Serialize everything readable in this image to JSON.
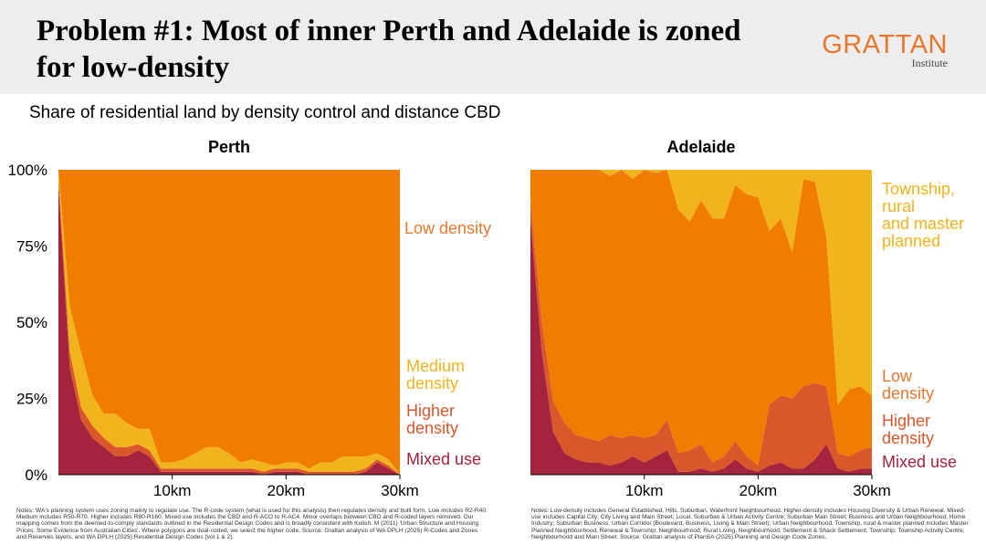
{
  "header": {
    "title": "Problem #1: Most of inner Perth and Adelaide is zoned for low-density",
    "logo_main": "GRATTAN",
    "logo_sub": "Institute"
  },
  "subtitle": "Share of residential land by density control and distance CBD",
  "colors": {
    "mixed_use": "#a3243c",
    "higher_density": "#d9572b",
    "low_density": "#f07d00",
    "medium_density": "#f2b41c",
    "township": "#f2b41c"
  },
  "notes": {
    "perth": "Notes: WA's planning system uses zoning mainly to regulate use. The R-code system (what is used for this analysis) then regulates density and built form. Low includes R2-R40. Medium includes R50-R70. Higher includes R80-R160. Mixed use includes the CBD and R-ACO to R-AC4. Minor overlaps between CBD and R-coded layers removed. Our mapping comes from the deemed-to-comply standards outlined in the Residential Design Codes and is broadly consistent with Kulish. M (2011) 'Urban Structure and Housing Prices: Some Evidence from Australian Cities'. Where polygons are dual-coded, we select the higher code. Source: Grattan analysis of WA DPLH (2025) R-Codes and Zones and Reserves layers, and WA DPLH (2025) Residential Design Codes (vol 1 & 2).",
    "adelaide": "Notes: Low-density includes General Established, Hills, Suburban, Waterfront Neighbourhood. Higher-density includes Housing Diversity & Urban Renewal. Mixed-use includes Capital City; City Living and Main Street; Local, Suburban & Urban Activity Centre; Suburban Main Street; Business and Urban Neighbourhood; Home Industry; Suburban Business; Urban Corridor (Boulevard, Business, Living & Main Street); Urban Neighbourhood. Township, rural & master planned includes Master Planned Neighbourhood, Renewal & Township; Neighbourhood; Rural Living, Neighbourhood, Settlement & Shack Settlement; Township; Township Activity Centre; Neighbourhood and Main Street. Source: Grattan analysis of PlanSA (2025) Planning and Design Code Zones."
  },
  "chart_data": [
    {
      "type": "area",
      "stacked": true,
      "title": "Perth",
      "x": [
        0,
        1,
        2,
        3,
        4,
        5,
        6,
        7,
        8,
        9,
        10,
        11,
        12,
        13,
        14,
        15,
        16,
        17,
        18,
        19,
        20,
        21,
        22,
        23,
        24,
        25,
        26,
        27,
        28,
        29,
        30
      ],
      "xticks": [
        "10km",
        "20km",
        "30km"
      ],
      "xtick_values": [
        10,
        20,
        30
      ],
      "xlim": [
        0,
        30
      ],
      "ylim": [
        0,
        100
      ],
      "yticks": [
        "100%",
        "75%",
        "50%",
        "25%",
        "0%"
      ],
      "ytick_values": [
        100,
        75,
        50,
        25,
        0
      ],
      "series": [
        {
          "name": "Mixed use",
          "color_key": "mixed_use",
          "values": [
            95,
            35,
            18,
            12,
            9,
            6,
            6,
            8,
            6,
            1,
            1,
            1,
            1,
            1,
            1,
            1,
            1,
            1,
            0,
            1,
            1,
            1,
            0,
            0,
            0,
            0,
            0,
            1,
            4,
            2,
            0
          ]
        },
        {
          "name": "Higher density",
          "color_key": "higher_density",
          "values": [
            2,
            5,
            4,
            4,
            3,
            3,
            3,
            2,
            2,
            1,
            1,
            1,
            1,
            1,
            1,
            1,
            1,
            1,
            1,
            1,
            1,
            1,
            1,
            1,
            1,
            1,
            1,
            1,
            1,
            1,
            0
          ]
        },
        {
          "name": "Medium density",
          "color_key": "medium_density",
          "values": [
            3,
            15,
            18,
            10,
            8,
            11,
            8,
            5,
            7,
            2,
            2,
            3,
            5,
            7,
            7,
            5,
            2,
            3,
            3,
            1,
            2,
            2,
            1,
            3,
            3,
            5,
            5,
            4,
            2,
            2,
            0
          ]
        },
        {
          "name": "Low density",
          "color_key": "low_density",
          "values": [
            0,
            45,
            60,
            74,
            80,
            80,
            83,
            85,
            85,
            96,
            96,
            95,
            93,
            91,
            91,
            93,
            96,
            95,
            96,
            97,
            96,
            96,
            98,
            96,
            96,
            94,
            94,
            94,
            93,
            95,
            100
          ]
        }
      ]
    },
    {
      "type": "area",
      "stacked": true,
      "title": "Adelaide",
      "x": [
        0,
        1,
        2,
        3,
        4,
        5,
        6,
        7,
        8,
        9,
        10,
        11,
        12,
        13,
        14,
        15,
        16,
        17,
        18,
        19,
        20,
        21,
        22,
        23,
        24,
        25,
        26,
        27,
        28,
        29,
        30
      ],
      "xticks": [
        "10km",
        "20km",
        "30km"
      ],
      "xtick_values": [
        10,
        20,
        30
      ],
      "xlim": [
        0,
        30
      ],
      "ylim": [
        0,
        100
      ],
      "series": [
        {
          "name": "Mixed use",
          "color_key": "mixed_use",
          "values": [
            84,
            40,
            14,
            7,
            5,
            4,
            4,
            3,
            4,
            6,
            4,
            6,
            8,
            1,
            1,
            2,
            1,
            2,
            5,
            2,
            1,
            3,
            4,
            2,
            2,
            5,
            10,
            2,
            1,
            2,
            2
          ]
        },
        {
          "name": "Higher density",
          "color_key": "higher_density",
          "values": [
            6,
            10,
            10,
            10,
            8,
            8,
            7,
            10,
            8,
            7,
            8,
            7,
            10,
            6,
            7,
            8,
            3,
            4,
            6,
            4,
            2,
            20,
            22,
            23,
            27,
            25,
            19,
            5,
            5,
            6,
            7
          ]
        },
        {
          "name": "Low density",
          "color_key": "low_density",
          "values": [
            10,
            50,
            76,
            83,
            87,
            88,
            89,
            85,
            88,
            84,
            88,
            86,
            82,
            80,
            75,
            80,
            80,
            78,
            84,
            86,
            88,
            57,
            58,
            48,
            68,
            66,
            49,
            16,
            22,
            21,
            17
          ]
        },
        {
          "name": "Township, rural and master planned",
          "color_key": "township",
          "values": [
            0,
            0,
            0,
            0,
            0,
            0,
            0,
            2,
            0,
            3,
            0,
            1,
            0,
            13,
            17,
            10,
            16,
            16,
            5,
            8,
            9,
            20,
            16,
            27,
            3,
            4,
            22,
            77,
            72,
            71,
            74
          ]
        }
      ]
    }
  ],
  "labels": {
    "perth": [
      {
        "text": "Low density",
        "series": "Low density"
      },
      {
        "text": "Medium density",
        "series": "Medium density"
      },
      {
        "text": "Higher density",
        "series": "Higher density"
      },
      {
        "text": "Mixed use",
        "series": "Mixed use"
      }
    ],
    "adelaide": [
      {
        "text": "Township, rural and master planned",
        "series": "Township, rural and master planned"
      },
      {
        "text": "Low density",
        "series": "Low density"
      },
      {
        "text": "Higher density",
        "series": "Higher density"
      },
      {
        "text": "Mixed use",
        "series": "Mixed use"
      }
    ]
  }
}
